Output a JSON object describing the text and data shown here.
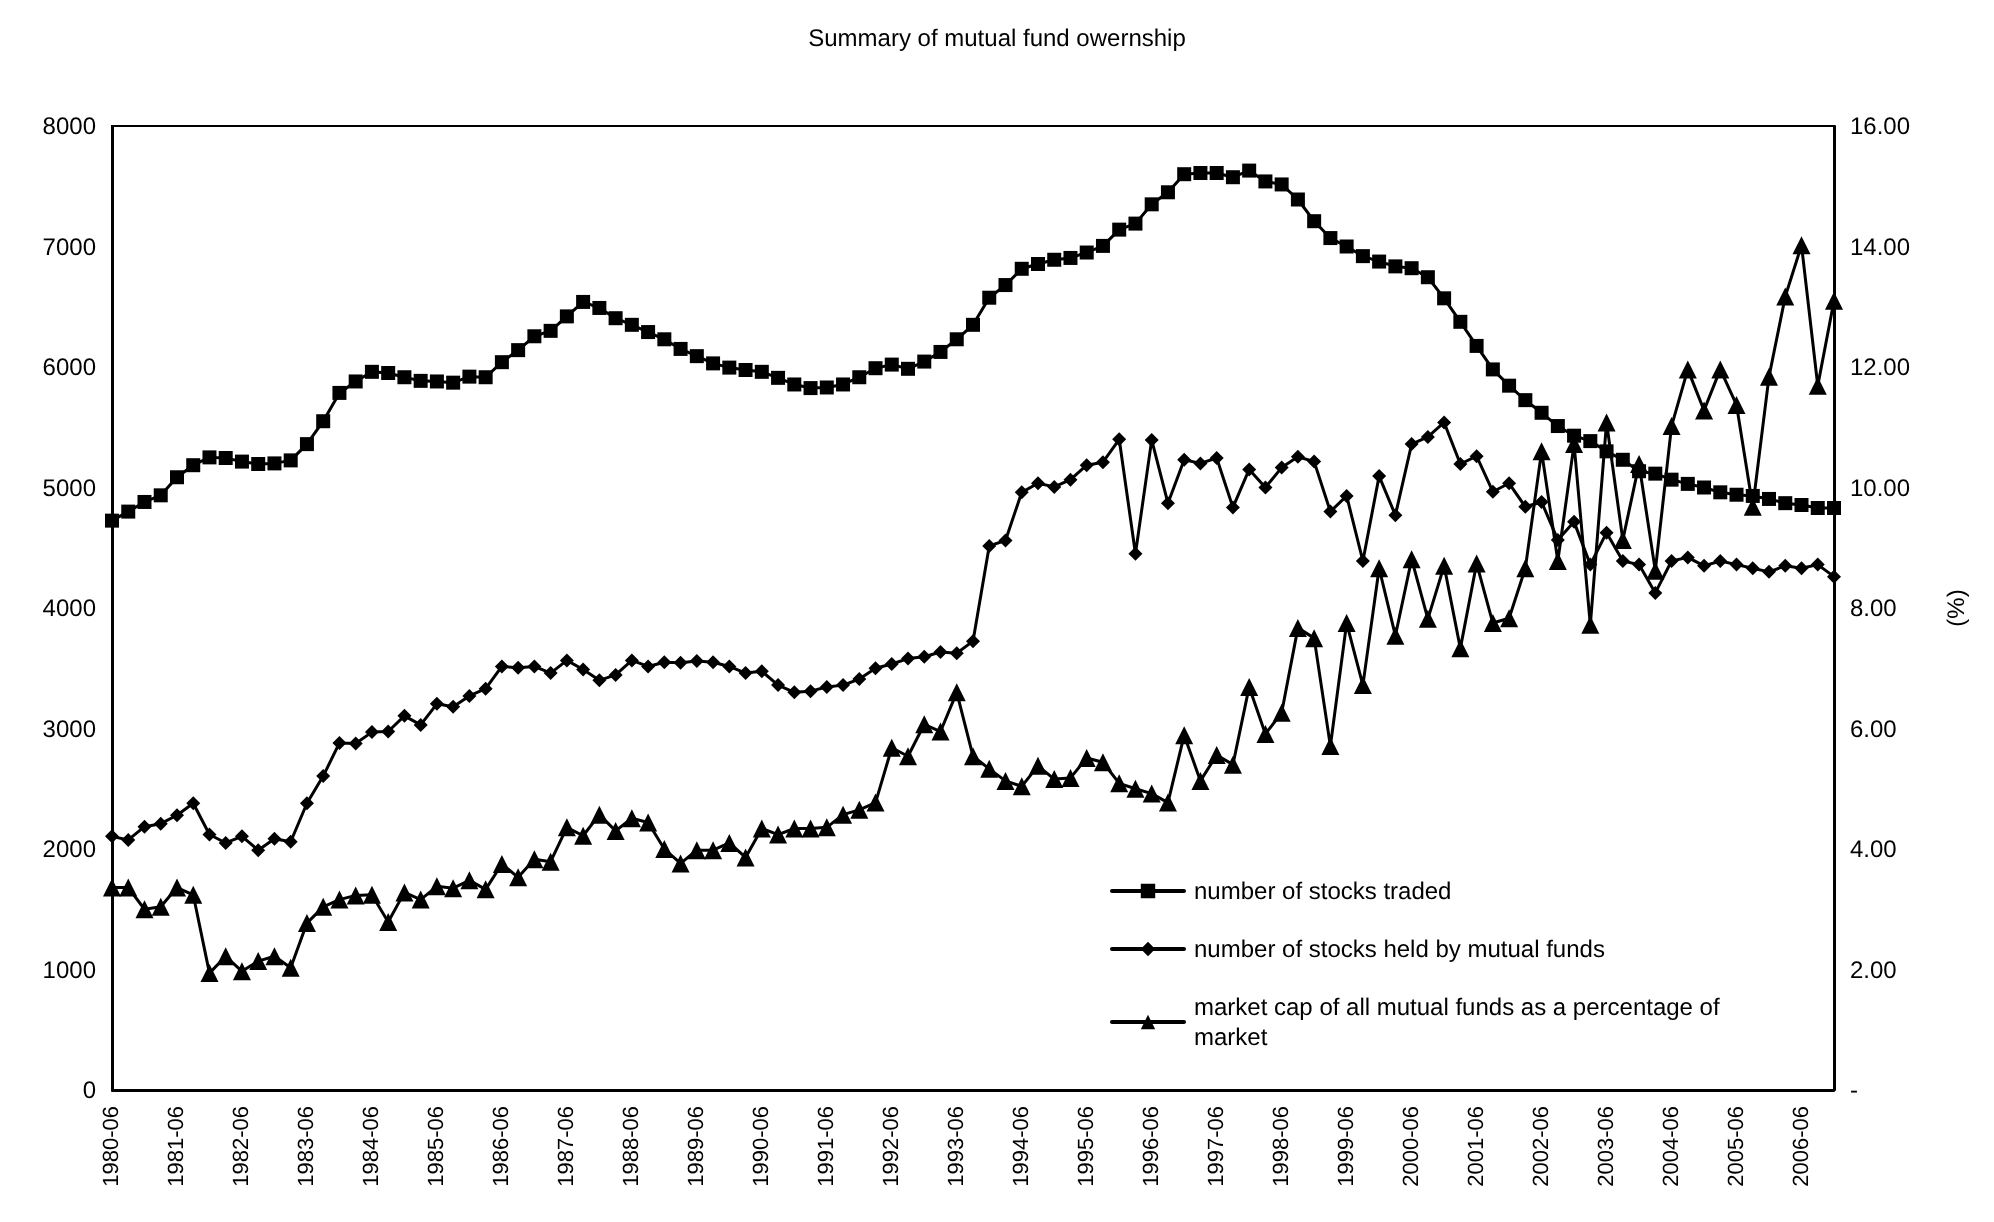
{
  "chart_data": {
    "type": "line",
    "title": "Summary of mutual fund owernship",
    "y2label": "(%)",
    "categories": [
      "1980-06",
      null,
      null,
      null,
      "1981-06",
      null,
      null,
      null,
      "1982-06",
      null,
      null,
      null,
      "1983-06",
      null,
      null,
      null,
      "1984-06",
      null,
      null,
      null,
      "1985-06",
      null,
      null,
      null,
      "1986-06",
      null,
      null,
      null,
      "1987-06",
      null,
      null,
      null,
      "1988-06",
      null,
      null,
      null,
      "1989-06",
      null,
      null,
      null,
      "1990-06",
      null,
      null,
      null,
      "1991-06",
      null,
      null,
      null,
      "1992-06",
      null,
      null,
      null,
      "1993-06",
      null,
      null,
      null,
      "1994-06",
      null,
      null,
      null,
      "1995-06",
      null,
      null,
      null,
      "1996-06",
      null,
      null,
      null,
      "1997-06",
      null,
      null,
      null,
      "1998-06",
      null,
      null,
      null,
      "1999-06",
      null,
      null,
      null,
      "2000-06",
      null,
      null,
      null,
      "2001-06",
      null,
      null,
      null,
      "2002-06",
      null,
      null,
      null,
      "2003-06",
      null,
      null,
      null,
      "2004-06",
      null,
      null,
      null,
      "2005-06",
      null,
      null,
      null,
      "2006-06",
      null,
      null
    ],
    "series": [
      {
        "name": "number of stocks traded",
        "color": "#000000",
        "marker": "square",
        "values": [
          4725,
          4800,
          4880,
          4935,
          5085,
          5185,
          5250,
          5245,
          5215,
          5195,
          5200,
          5225,
          5360,
          5550,
          5785,
          5880,
          5960,
          5950,
          5915,
          5885,
          5880,
          5870,
          5920,
          5915,
          6040,
          6140,
          6255,
          6300,
          6420,
          6540,
          6490,
          6405,
          6350,
          6290,
          6230,
          6150,
          6090,
          6030,
          5995,
          5975,
          5960,
          5910,
          5855,
          5825,
          5830,
          5855,
          5915,
          5990,
          6020,
          5985,
          6045,
          6125,
          6230,
          6350,
          6575,
          6680,
          6815,
          6855,
          6890,
          6905,
          6950,
          7005,
          7140,
          7190,
          7350,
          7450,
          7600,
          7610,
          7610,
          7575,
          7630,
          7540,
          7515,
          7390,
          7210,
          7070,
          7000,
          6920,
          6875,
          6835,
          6820,
          6745,
          6570,
          6375,
          6175,
          5980,
          5845,
          5725,
          5620,
          5510,
          5430,
          5385,
          5300,
          5230,
          5135,
          5115,
          5065,
          5030,
          5000,
          4960,
          4940,
          4930,
          4905,
          4870,
          4855,
          4830,
          4830
        ]
      },
      {
        "name": "number of stocks held by mutual funds",
        "color": "#000000",
        "marker": "diamond",
        "values": [
          2105,
          2075,
          2185,
          2210,
          2280,
          2380,
          2120,
          2050,
          2105,
          1990,
          2085,
          2060,
          2380,
          2605,
          2880,
          2875,
          2970,
          2975,
          3105,
          3030,
          3205,
          3180,
          3270,
          3330,
          3515,
          3505,
          3515,
          3460,
          3565,
          3490,
          3400,
          3445,
          3565,
          3515,
          3550,
          3545,
          3560,
          3550,
          3515,
          3460,
          3475,
          3360,
          3300,
          3310,
          3345,
          3360,
          3410,
          3500,
          3535,
          3580,
          3595,
          3635,
          3625,
          3725,
          4515,
          4560,
          4960,
          5035,
          5005,
          5065,
          5185,
          5210,
          5400,
          4450,
          5395,
          4870,
          5230,
          5200,
          5245,
          4835,
          5150,
          5000,
          5165,
          5255,
          5215,
          4800,
          4930,
          4390,
          5095,
          4770,
          5360,
          5420,
          5540,
          5195,
          5260,
          4965,
          5035,
          4840,
          4880,
          4565,
          4715,
          4360,
          4625,
          4390,
          4360,
          4125,
          4390,
          4420,
          4350,
          4390,
          4360,
          4330,
          4300,
          4350,
          4330,
          4360,
          4260
        ]
      },
      {
        "name": "market cap of all mutual funds as a percentage of market",
        "color": "#000000",
        "marker": "triangle",
        "axis": "y2",
        "values": [
          3.36,
          3.36,
          3.0,
          3.04,
          3.36,
          3.24,
          1.94,
          2.22,
          1.97,
          2.14,
          2.22,
          2.03,
          2.77,
          3.04,
          3.16,
          3.23,
          3.24,
          2.79,
          3.28,
          3.16,
          3.38,
          3.35,
          3.48,
          3.33,
          3.75,
          3.53,
          3.83,
          3.79,
          4.36,
          4.22,
          4.57,
          4.3,
          4.51,
          4.44,
          4.0,
          3.76,
          3.98,
          3.98,
          4.1,
          3.86,
          4.34,
          4.24,
          4.34,
          4.34,
          4.36,
          4.57,
          4.65,
          4.77,
          5.68,
          5.54,
          6.07,
          5.95,
          6.6,
          5.54,
          5.33,
          5.13,
          5.04,
          5.38,
          5.16,
          5.18,
          5.51,
          5.44,
          5.09,
          5.0,
          4.92,
          4.77,
          5.89,
          5.13,
          5.56,
          5.4,
          6.69,
          5.91,
          6.26,
          7.67,
          7.5,
          5.71,
          7.75,
          6.72,
          8.66,
          7.54,
          8.81,
          7.82,
          8.7,
          7.33,
          8.74,
          7.75,
          7.83,
          8.66,
          10.6,
          8.78,
          10.72,
          7.72,
          11.08,
          9.13,
          10.39,
          8.62,
          11.02,
          11.96,
          11.28,
          11.96,
          11.37,
          9.68,
          11.84,
          13.17,
          14.02,
          11.69,
          13.1
        ]
      }
    ],
    "ylim": [
      0,
      8000
    ],
    "yticks": [
      0,
      1000,
      2000,
      3000,
      4000,
      5000,
      6000,
      7000,
      8000
    ],
    "y2lim": [
      0,
      16
    ],
    "y2ticks": [
      {
        "value": 0,
        "label": "-"
      },
      {
        "value": 2,
        "label": "2.00"
      },
      {
        "value": 4,
        "label": "4.00"
      },
      {
        "value": 6,
        "label": "6.00"
      },
      {
        "value": 8,
        "label": "8.00"
      },
      {
        "value": 10,
        "label": "10.00"
      },
      {
        "value": 12,
        "label": "12.00"
      },
      {
        "value": 14,
        "label": "14.00"
      },
      {
        "value": 16,
        "label": "16.00"
      }
    ],
    "grid": false,
    "legend": "bottom right"
  }
}
